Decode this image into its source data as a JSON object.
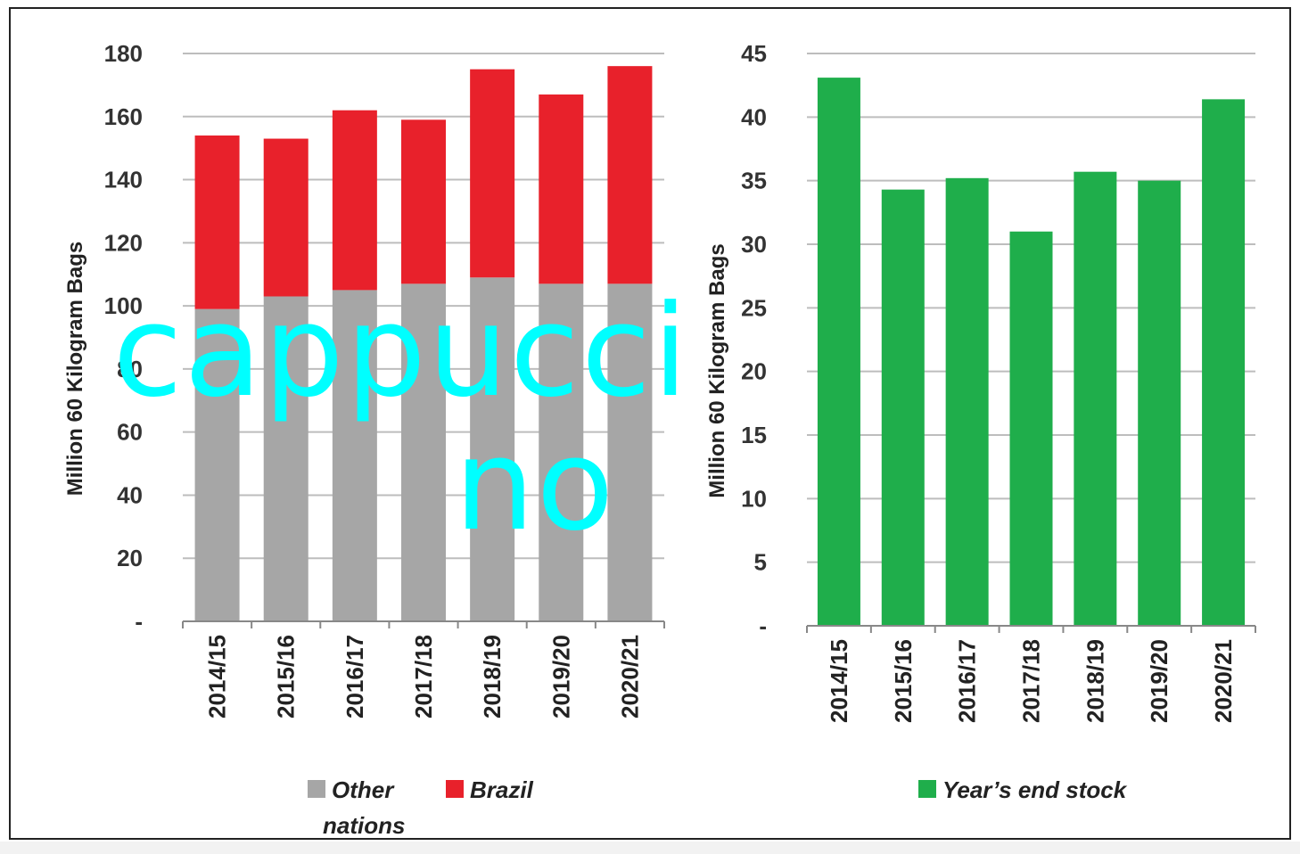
{
  "watermark": {
    "line1": "cappucci",
    "line2": "no"
  },
  "chart_data": [
    {
      "type": "bar",
      "stacked": true,
      "categories": [
        "2014/15",
        "2015/16",
        "2016/17",
        "2017/18",
        "2018/19",
        "2019/20",
        "2020/21"
      ],
      "series": [
        {
          "name": "Other nations",
          "color": "#a6a6a6",
          "values": [
            99,
            103,
            105,
            107,
            109,
            107,
            107
          ]
        },
        {
          "name": "Brazil",
          "color": "#e8212b",
          "values": [
            55,
            50,
            57,
            52,
            66,
            60,
            69
          ]
        }
      ],
      "ylabel": "Million 60 Kilogram Bags",
      "ylim": [
        0,
        180
      ],
      "yticks": [
        0,
        20,
        40,
        60,
        80,
        100,
        120,
        140,
        160,
        180
      ],
      "ytick_labels": [
        "-",
        "20",
        "40",
        "60",
        "80",
        "100",
        "120",
        "140",
        "160",
        "180"
      ],
      "grid": true,
      "legend": "bottom",
      "legend_labels": [
        [
          "Other",
          "nations"
        ],
        [
          "Brazil"
        ]
      ]
    },
    {
      "type": "bar",
      "categories": [
        "2014/15",
        "2015/16",
        "2016/17",
        "2017/18",
        "2018/19",
        "2019/20",
        "2020/21"
      ],
      "series": [
        {
          "name": "Year’s end stock",
          "color": "#1fae4b",
          "values": [
            43.1,
            34.3,
            35.2,
            31,
            35.7,
            35,
            41.4
          ]
        }
      ],
      "ylabel": "Million 60 Kilogram Bags",
      "ylim": [
        0,
        45
      ],
      "yticks": [
        0,
        5,
        10,
        15,
        20,
        25,
        30,
        35,
        40,
        45
      ],
      "ytick_labels": [
        "-",
        "5",
        "10",
        "15",
        "20",
        "25",
        "30",
        "35",
        "40",
        "45"
      ],
      "grid": true,
      "legend": "bottom",
      "legend_labels": [
        [
          "Year’s end stock"
        ]
      ]
    }
  ]
}
